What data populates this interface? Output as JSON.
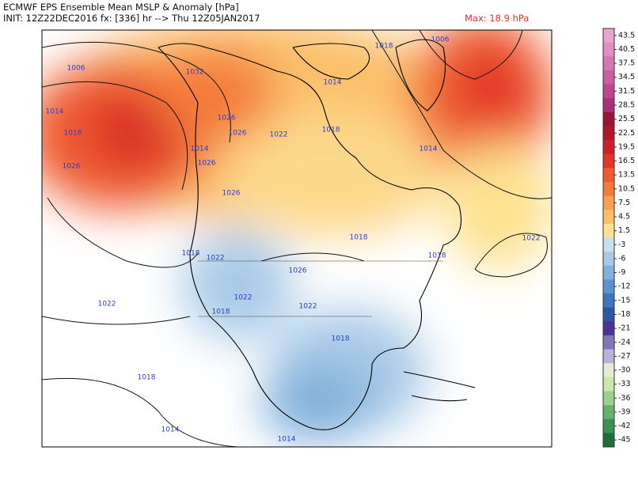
{
  "header": {
    "title": "ECMWF EPS Ensemble Mean MSLP & Anomaly [hPa]",
    "init": "INIT: 12Z22DEC2016 fx: [336] hr --> Thu 12Z05JAN2017",
    "max": "Max: 18.9 hPa"
  },
  "legend": {
    "labels": [
      "43.5",
      "40.5",
      "37.5",
      "34.5",
      "31.5",
      "28.5",
      "25.5",
      "22.5",
      "19.5",
      "16.5",
      "13.5",
      "10.5",
      "7.5",
      "4.5",
      "1.5",
      "-3",
      "-6",
      "-9",
      "-12",
      "-15",
      "-18",
      "-21",
      "-24",
      "-27",
      "-30",
      "-33",
      "-36",
      "-39",
      "-42",
      "-45"
    ],
    "colors": [
      "#e9a6ce",
      "#e08fc0",
      "#d676b1",
      "#cb5ea1",
      "#be4690",
      "#ac2f7a",
      "#9a1438",
      "#b3162c",
      "#cc1f2a",
      "#e2352a",
      "#ee5a2d",
      "#f47c3a",
      "#f89f52",
      "#fbbf6a",
      "#fde28f",
      "#c9dff0",
      "#a8cae7",
      "#82b1db",
      "#5b94cc",
      "#3b77bb",
      "#2b57a4",
      "#4a3592",
      "#8576b8",
      "#b9b2d9",
      "#e4ecd6",
      "#cbe7ab",
      "#9bd18c",
      "#68b16b",
      "#3b9151",
      "#1f6e3c"
    ]
  },
  "map": {
    "isobar_labels": [
      "1006",
      "1032",
      "1014",
      "1018",
      "1026",
      "1026",
      "1026",
      "1022",
      "1014",
      "1026",
      "1026",
      "1018",
      "1006",
      "1014",
      "1018",
      "1014",
      "1022",
      "1018",
      "1018",
      "1018",
      "1022",
      "1026",
      "1022",
      "1018",
      "1022",
      "1022",
      "1018",
      "1018",
      "1014",
      "1014"
    ]
  }
}
